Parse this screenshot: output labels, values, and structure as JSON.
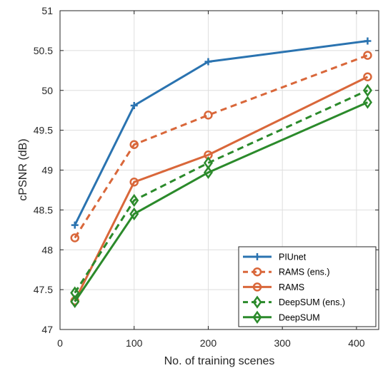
{
  "chart_data": {
    "type": "line",
    "xlabel": "No. of training scenes",
    "ylabel": "cPSNR (dB)",
    "xlim": [
      0,
      430
    ],
    "ylim": [
      47,
      51
    ],
    "xticks": [
      0,
      100,
      200,
      300,
      400
    ],
    "yticks": [
      47,
      47.5,
      48,
      48.5,
      49,
      49.5,
      50,
      50.5,
      51
    ],
    "xtick_labels": [
      "0",
      "100",
      "200",
      "300",
      "400"
    ],
    "ytick_labels": [
      "47",
      "47.5",
      "48",
      "48.5",
      "49",
      "49.5",
      "50",
      "50.5",
      "51"
    ],
    "grid": true,
    "legend_position": "bottom-right",
    "series": [
      {
        "name": "PIUnet",
        "color": "#2a73b0",
        "dash": "solid",
        "marker": "plus",
        "x": [
          20,
          100,
          200,
          415
        ],
        "y": [
          48.31,
          49.81,
          50.36,
          50.62
        ]
      },
      {
        "name": "RAMS (ens.)",
        "color": "#d9673a",
        "dash": "dashed",
        "marker": "circle",
        "x": [
          20,
          100,
          200,
          415
        ],
        "y": [
          48.15,
          49.32,
          49.69,
          50.44
        ]
      },
      {
        "name": "RAMS",
        "color": "#d9673a",
        "dash": "solid",
        "marker": "circle",
        "x": [
          20,
          100,
          200,
          415
        ],
        "y": [
          47.36,
          48.85,
          49.19,
          50.17
        ]
      },
      {
        "name": "DeepSUM (ens.)",
        "color": "#2b8a2b",
        "dash": "dashed",
        "marker": "diamond",
        "x": [
          20,
          100,
          200,
          415
        ],
        "y": [
          47.46,
          48.62,
          49.09,
          50.0
        ]
      },
      {
        "name": "DeepSUM",
        "color": "#2b8a2b",
        "dash": "solid",
        "marker": "diamond",
        "x": [
          20,
          100,
          200,
          415
        ],
        "y": [
          47.35,
          48.45,
          48.97,
          49.85
        ]
      }
    ]
  }
}
